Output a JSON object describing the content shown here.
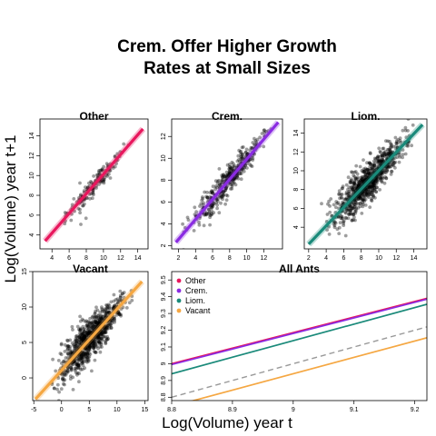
{
  "figure": {
    "title_line1": "Crem. Offer Higher Growth",
    "title_line2": "Rates at Small Sizes",
    "xlabel": "Log(Volume) year t",
    "ylabel": "Log(Volume) year t+1"
  },
  "chart_data": [
    {
      "type": "scatter",
      "title": "Other",
      "fit_color": "#e8175d",
      "xlim": [
        2.6,
        15.2
      ],
      "ylim": [
        2.6,
        15.7
      ],
      "xticks": [
        4,
        6,
        8,
        10,
        12,
        14
      ],
      "yticks": [
        4,
        6,
        8,
        10,
        12,
        14
      ],
      "fit": {
        "x": [
          3.2,
          14.6
        ],
        "y": [
          3.4,
          14.7
        ]
      },
      "point_cloud": {
        "n": 150,
        "x_range": [
          3.5,
          14.0
        ],
        "scatter_sd": 0.55
      }
    },
    {
      "type": "scatter",
      "title": "Crem.",
      "fit_color": "#8a2be2",
      "xlim": [
        1.2,
        14.2
      ],
      "ylim": [
        1.7,
        13.6
      ],
      "xticks": [
        2,
        4,
        6,
        8,
        10,
        12
      ],
      "yticks": [
        2,
        4,
        6,
        8,
        10,
        12
      ],
      "fit": {
        "x": [
          1.7,
          13.7
        ],
        "y": [
          2.3,
          13.3
        ]
      },
      "point_cloud": {
        "n": 420,
        "x_range": [
          2.0,
          13.5
        ],
        "scatter_sd": 0.7
      }
    },
    {
      "type": "scatter",
      "title": "Liom.",
      "fit_color": "#1a8a7a",
      "xlim": [
        1.5,
        15.5
      ],
      "ylim": [
        1.7,
        15.5
      ],
      "xticks": [
        2,
        4,
        6,
        8,
        10,
        12,
        14
      ],
      "yticks": [
        4,
        6,
        8,
        10,
        12,
        14
      ],
      "fit": {
        "x": [
          2.0,
          15.0
        ],
        "y": [
          2.2,
          14.9
        ]
      },
      "point_cloud": {
        "n": 900,
        "x_range": [
          3.0,
          14.5
        ],
        "scatter_sd": 1.0
      }
    },
    {
      "type": "scatter",
      "title": "Vacant",
      "fit_color": "#f5a742",
      "xlim": [
        -5.2,
        15.6
      ],
      "ylim": [
        -3.2,
        15.0
      ],
      "xticks": [
        -5,
        0,
        5,
        10,
        15
      ],
      "yticks": [
        0,
        5,
        10,
        15
      ],
      "fit": {
        "x": [
          -4.7,
          14.5
        ],
        "y": [
          -3.0,
          13.6
        ]
      },
      "point_cloud": {
        "n": 900,
        "x_range": [
          -3.0,
          13.5
        ],
        "scatter_sd": 1.4
      }
    },
    {
      "type": "line",
      "title": "All Ants",
      "xlim": [
        8.8,
        9.22
      ],
      "ylim": [
        8.78,
        9.55
      ],
      "xticks": [
        8.8,
        8.9,
        9.0,
        9.1,
        9.2
      ],
      "yticks": [
        8.8,
        8.9,
        9.0,
        9.1,
        9.2,
        9.3,
        9.4,
        9.5
      ],
      "legend_position": "top-left",
      "series": [
        {
          "name": "Other",
          "color": "#e8175d",
          "style": "solid",
          "x": [
            8.8,
            9.22
          ],
          "y": [
            9.0,
            9.39
          ]
        },
        {
          "name": "Crem.",
          "color": "#8a2be2",
          "style": "solid",
          "x": [
            8.8,
            9.22
          ],
          "y": [
            8.995,
            9.385
          ]
        },
        {
          "name": "Liom.",
          "color": "#1a8a7a",
          "style": "solid",
          "x": [
            8.8,
            9.22
          ],
          "y": [
            8.94,
            9.355
          ]
        },
        {
          "name": "Vacant",
          "color": "#f5a742",
          "style": "solid",
          "x": [
            8.8,
            9.22
          ],
          "y": [
            8.745,
            9.155
          ]
        },
        {
          "name": "",
          "color": "#999999",
          "style": "dashed",
          "x": [
            8.8,
            9.22
          ],
          "y": [
            8.8,
            9.22
          ]
        }
      ]
    }
  ]
}
